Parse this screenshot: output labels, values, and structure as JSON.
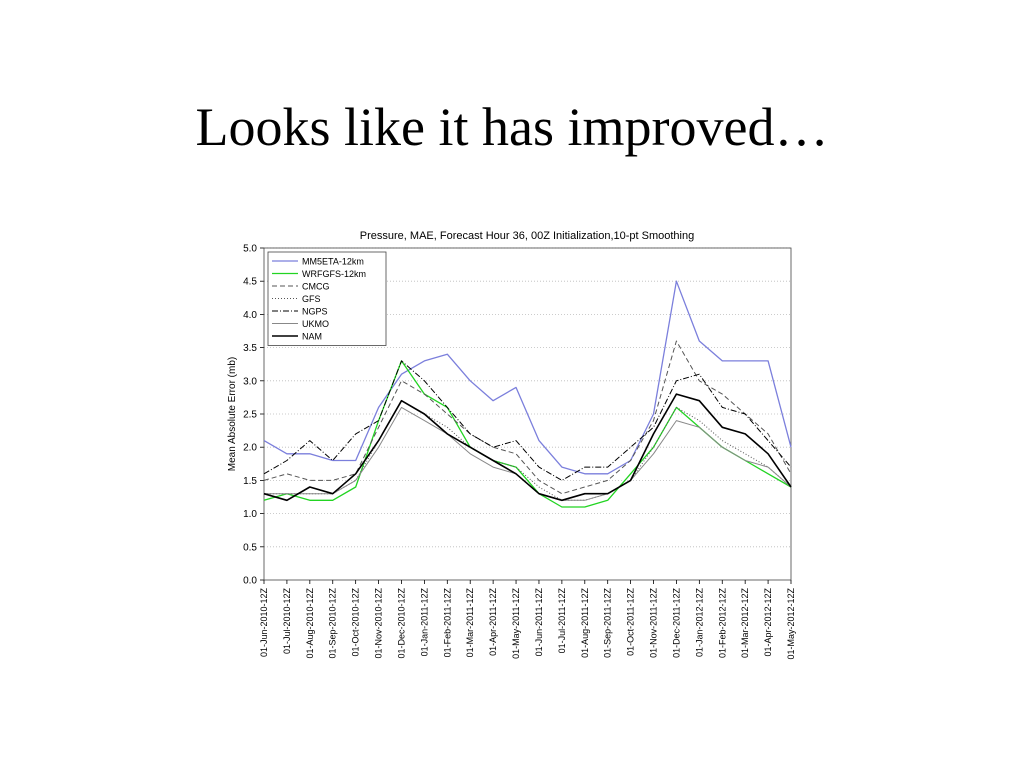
{
  "slide": {
    "title": "Looks like it has improved…"
  },
  "chart_data": {
    "type": "line",
    "title": "Pressure, MAE, Forecast Hour 36, 00Z Initialization,10-pt Smoothing",
    "xlabel": "",
    "ylabel": "Mean Absolute Error (mb)",
    "ylim": [
      0,
      5
    ],
    "yticks": [
      "0.0",
      "0.5",
      "1.0",
      "1.5",
      "2.0",
      "2.5",
      "3.0",
      "3.5",
      "4.0",
      "4.5",
      "5.0"
    ],
    "grid": true,
    "legend_position": "top-left",
    "categories": [
      "01-Jun-2010-12Z",
      "01-Jul-2010-12Z",
      "01-Aug-2010-12Z",
      "01-Sep-2010-12Z",
      "01-Oct-2010-12Z",
      "01-Nov-2010-12Z",
      "01-Dec-2010-12Z",
      "01-Jan-2011-12Z",
      "01-Feb-2011-12Z",
      "01-Mar-2011-12Z",
      "01-Apr-2011-12Z",
      "01-May-2011-12Z",
      "01-Jun-2011-12Z",
      "01-Jul-2011-12Z",
      "01-Aug-2011-12Z",
      "01-Sep-2011-12Z",
      "01-Oct-2011-12Z",
      "01-Nov-2011-12Z",
      "01-Dec-2011-12Z",
      "01-Jan-2012-12Z",
      "01-Feb-2012-12Z",
      "01-Mar-2012-12Z",
      "01-Apr-2012-12Z",
      "01-May-2012-12Z"
    ],
    "series": [
      {
        "name": "MM5ETA-12km",
        "color": "#7b7fdc",
        "dash": "",
        "width": 1.3,
        "values": [
          2.1,
          1.9,
          1.9,
          1.8,
          1.8,
          2.6,
          3.1,
          3.3,
          3.4,
          3.0,
          2.7,
          2.9,
          2.1,
          1.7,
          1.6,
          1.6,
          1.8,
          2.5,
          4.5,
          3.6,
          3.3,
          3.3,
          3.3,
          2.0
        ]
      },
      {
        "name": "WRFGFS-12km",
        "color": "#22d422",
        "dash": "",
        "width": 1.3,
        "values": [
          1.2,
          1.3,
          1.2,
          1.2,
          1.4,
          2.4,
          3.3,
          2.8,
          2.6,
          2.0,
          1.8,
          1.7,
          1.3,
          1.1,
          1.1,
          1.2,
          1.6,
          2.0,
          2.6,
          2.3,
          2.0,
          1.8,
          1.6,
          1.4
        ]
      },
      {
        "name": "CMCG",
        "color": "#555555",
        "dash": "5,3",
        "width": 1.0,
        "values": [
          1.5,
          1.6,
          1.5,
          1.5,
          1.6,
          2.3,
          3.0,
          2.8,
          2.5,
          2.2,
          2.0,
          1.9,
          1.5,
          1.3,
          1.4,
          1.5,
          1.8,
          2.4,
          3.6,
          3.0,
          2.8,
          2.5,
          2.2,
          1.6
        ]
      },
      {
        "name": "GFS",
        "color": "#555555",
        "dash": "1,2",
        "width": 1.0,
        "values": [
          1.3,
          1.3,
          1.3,
          1.3,
          1.5,
          2.1,
          2.7,
          2.5,
          2.3,
          2.0,
          1.8,
          1.7,
          1.4,
          1.2,
          1.2,
          1.3,
          1.5,
          2.0,
          2.6,
          2.4,
          2.1,
          1.9,
          1.7,
          1.4
        ]
      },
      {
        "name": "NGPS",
        "color": "#000000",
        "dash": "6,2,1,2",
        "width": 1.0,
        "values": [
          1.6,
          1.8,
          2.1,
          1.8,
          2.2,
          2.4,
          3.3,
          3.0,
          2.6,
          2.2,
          2.0,
          2.1,
          1.7,
          1.5,
          1.7,
          1.7,
          2.0,
          2.3,
          3.0,
          3.1,
          2.6,
          2.5,
          2.1,
          1.7
        ]
      },
      {
        "name": "UKMO",
        "color": "#888888",
        "dash": "",
        "width": 1.0,
        "values": [
          1.3,
          1.3,
          1.3,
          1.3,
          1.5,
          2.0,
          2.6,
          2.4,
          2.2,
          1.9,
          1.7,
          1.6,
          1.3,
          1.2,
          1.2,
          1.3,
          1.5,
          1.9,
          2.4,
          2.3,
          2.0,
          1.8,
          1.7,
          1.4
        ]
      },
      {
        "name": "NAM",
        "color": "#000000",
        "dash": "",
        "width": 1.6,
        "values": [
          1.3,
          1.2,
          1.4,
          1.3,
          1.6,
          2.1,
          2.7,
          2.5,
          2.2,
          2.0,
          1.8,
          1.6,
          1.3,
          1.2,
          1.3,
          1.3,
          1.5,
          2.2,
          2.8,
          2.7,
          2.3,
          2.2,
          1.9,
          1.4
        ]
      }
    ]
  }
}
